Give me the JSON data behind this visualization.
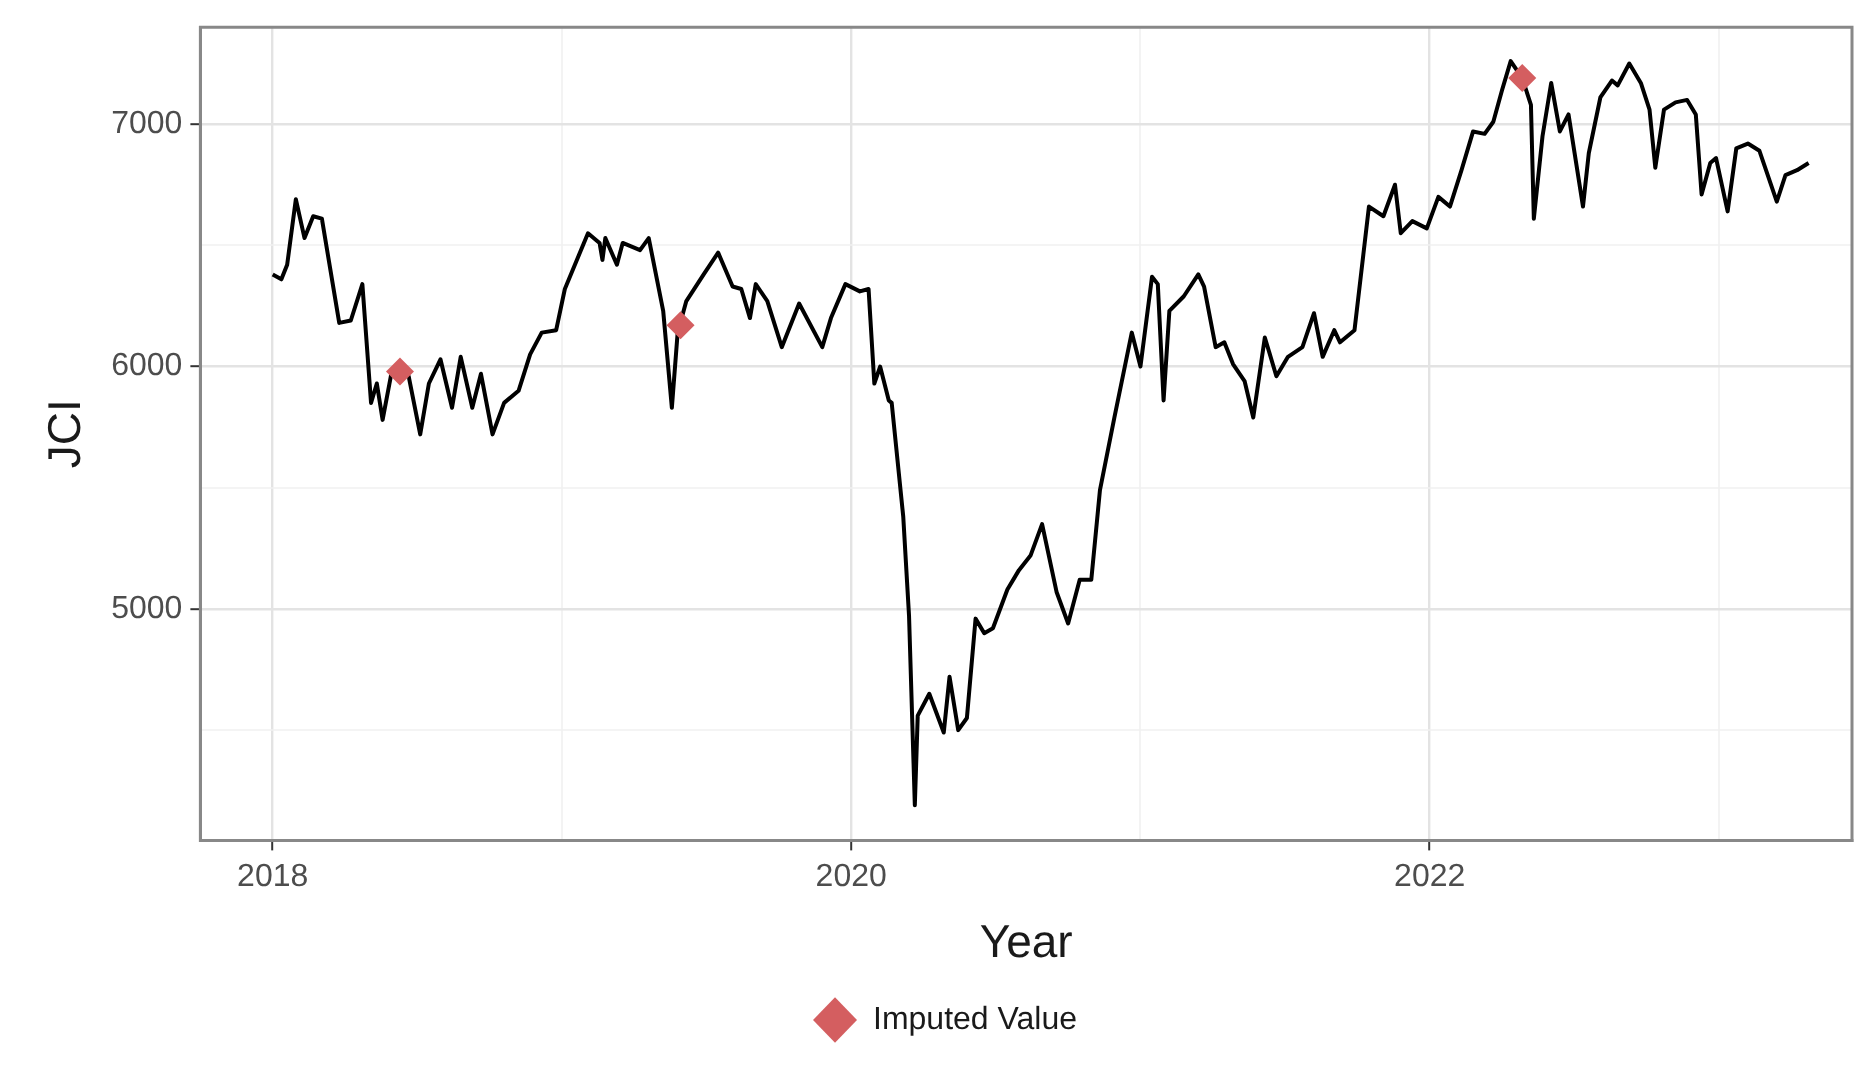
{
  "chart_data": {
    "type": "line",
    "xlabel": "Year",
    "ylabel": "JCI",
    "xlim": [
      2017.75,
      2023.46
    ],
    "ylim": [
      4045,
      7400
    ],
    "xticks": [
      2018,
      {
        "value": 2019,
        "label": null
      },
      2020,
      {
        "value": 2021,
        "label": null
      },
      2022,
      {
        "value": 2023,
        "label": null
      }
    ],
    "yticks": [
      {
        "value": 4500,
        "label": null
      },
      5000,
      {
        "value": 5500,
        "label": null
      },
      6000,
      {
        "value": 6500,
        "label": null
      },
      7000
    ],
    "grid": true,
    "legend": "bottom",
    "series": [
      {
        "color": "#000000",
        "marker": "none",
        "line_style": "solid",
        "x": [
          2018.0,
          2018.03,
          2018.05,
          2018.08,
          2018.11,
          2018.14,
          2018.17,
          2018.23,
          2018.27,
          2018.31,
          2018.34,
          2018.36,
          2018.38,
          2018.41,
          2018.47,
          2018.51,
          2018.54,
          2018.58,
          2018.62,
          2018.65,
          2018.69,
          2018.72,
          2018.76,
          2018.8,
          2018.85,
          2018.89,
          2018.93,
          2018.98,
          2019.01,
          2019.09,
          2019.13,
          2019.14,
          2019.15,
          2019.19,
          2019.21,
          2019.27,
          2019.3,
          2019.35,
          2019.38,
          2019.4,
          2019.43,
          2019.49,
          2019.54,
          2019.59,
          2019.62,
          2019.65,
          2019.67,
          2019.71,
          2019.76,
          2019.82,
          2019.9,
          2019.93,
          2019.98,
          2020.03,
          2020.06,
          2020.08,
          2020.1,
          2020.13,
          2020.14,
          2020.18,
          2020.2,
          2020.22,
          2020.23,
          2020.27,
          2020.32,
          2020.34,
          2020.37,
          2020.4,
          2020.43,
          2020.46,
          2020.49,
          2020.54,
          2020.58,
          2020.62,
          2020.66,
          2020.71,
          2020.75,
          2020.79,
          2020.83,
          2020.86,
          2020.91,
          2020.97,
          2021.0,
          2021.04,
          2021.06,
          2021.08,
          2021.1,
          2021.15,
          2021.2,
          2021.22,
          2021.26,
          2021.29,
          2021.32,
          2021.36,
          2021.39,
          2021.43,
          2021.47,
          2021.51,
          2021.56,
          2021.6,
          2021.63,
          2021.67,
          2021.69,
          2021.74,
          2021.79,
          2021.84,
          2021.88,
          2021.9,
          2021.94,
          2021.99,
          2022.03,
          2022.07,
          2022.11,
          2022.15,
          2022.19,
          2022.22,
          2022.25,
          2022.28,
          2022.32,
          2022.35,
          2022.36,
          2022.39,
          2022.42,
          2022.45,
          2022.48,
          2022.53,
          2022.55,
          2022.59,
          2022.63,
          2022.65,
          2022.69,
          2022.73,
          2022.76,
          2022.78,
          2022.81,
          2022.85,
          2022.89,
          2022.92,
          2022.94,
          2022.97,
          2022.99,
          2023.03,
          2023.06,
          2023.1,
          2023.14,
          2023.2,
          2023.23,
          2023.27,
          2023.31
        ],
        "values": [
          6380,
          6360,
          6420,
          6690,
          6530,
          6620,
          6610,
          6180,
          6190,
          6340,
          5850,
          5930,
          5780,
          5970,
          5960,
          5720,
          5930,
          6030,
          5830,
          6040,
          5830,
          5970,
          5720,
          5850,
          5900,
          6050,
          6140,
          6150,
          6320,
          6550,
          6510,
          6440,
          6530,
          6420,
          6510,
          6480,
          6530,
          6230,
          5830,
          6140,
          6270,
          6380,
          6470,
          6330,
          6320,
          6200,
          6340,
          6270,
          6080,
          6260,
          6080,
          6200,
          6340,
          6310,
          6320,
          5930,
          6000,
          5860,
          5850,
          5380,
          4970,
          4190,
          4560,
          4650,
          4490,
          4720,
          4500,
          4550,
          4960,
          4900,
          4920,
          5080,
          5160,
          5220,
          5350,
          5070,
          4940,
          5120,
          5120,
          5490,
          5790,
          6140,
          6000,
          6370,
          6340,
          5860,
          6230,
          6290,
          6380,
          6330,
          6080,
          6100,
          6010,
          5940,
          5790,
          6120,
          5960,
          6040,
          6080,
          6220,
          6040,
          6150,
          6100,
          6150,
          6660,
          6620,
          6750,
          6550,
          6600,
          6570,
          6700,
          6660,
          6810,
          6970,
          6960,
          7010,
          7140,
          7260,
          7190,
          7080,
          6610,
          6950,
          7170,
          6970,
          7040,
          6660,
          6880,
          7110,
          7180,
          7160,
          7250,
          7170,
          7060,
          6820,
          7060,
          7090,
          7100,
          7040,
          6710,
          6840,
          6860,
          6640,
          6900,
          6920,
          6890,
          6680,
          6790,
          6810,
          6840
        ]
      },
      {
        "type": "scatter",
        "name": "Imputed Value",
        "color": "#d45e60",
        "marker": "diamond",
        "x": [
          2018.44,
          2019.41,
          2022.32
        ],
        "values": [
          5980,
          6170,
          7190
        ]
      }
    ]
  }
}
